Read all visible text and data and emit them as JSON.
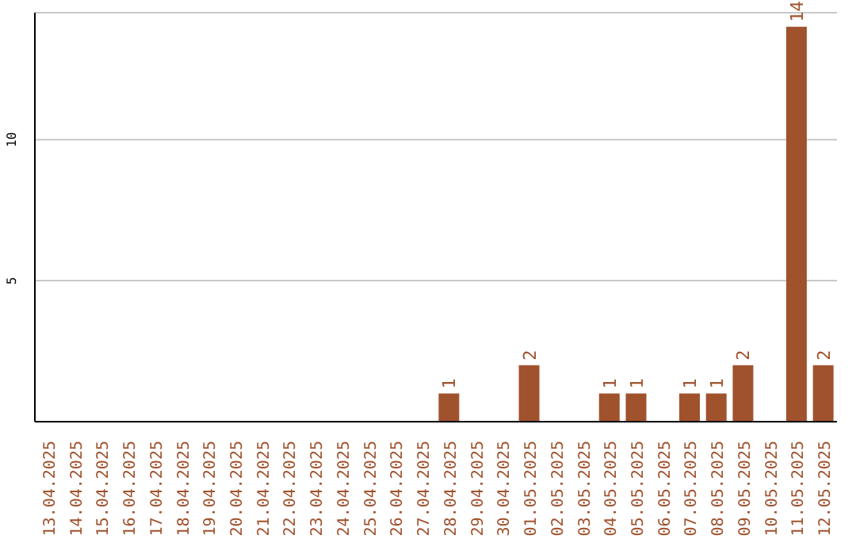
{
  "chart_data": {
    "type": "bar",
    "categories": [
      "13.04.2025",
      "14.04.2025",
      "15.04.2025",
      "16.04.2025",
      "17.04.2025",
      "18.04.2025",
      "19.04.2025",
      "20.04.2025",
      "21.04.2025",
      "22.04.2025",
      "23.04.2025",
      "24.04.2025",
      "25.04.2025",
      "26.04.2025",
      "27.04.2025",
      "28.04.2025",
      "29.04.2025",
      "30.04.2025",
      "01.05.2025",
      "02.05.2025",
      "03.05.2025",
      "04.05.2025",
      "05.05.2025",
      "06.05.2025",
      "07.05.2025",
      "08.05.2025",
      "09.05.2025",
      "10.05.2025",
      "11.05.2025",
      "12.05.2025"
    ],
    "values": [
      0,
      0,
      0,
      0,
      0,
      0,
      0,
      0,
      0,
      0,
      0,
      0,
      0,
      0,
      0,
      1,
      0,
      0,
      2,
      0,
      0,
      1,
      1,
      0,
      1,
      1,
      2,
      0,
      14,
      2
    ],
    "value_labels": [
      null,
      null,
      null,
      null,
      null,
      null,
      null,
      null,
      null,
      null,
      null,
      null,
      null,
      null,
      null,
      "1",
      null,
      null,
      "2",
      null,
      null,
      "1",
      "1",
      null,
      "1",
      "1",
      "2",
      null,
      "14",
      "2"
    ],
    "color": "#a0522d",
    "ylim": [
      0,
      14.5
    ],
    "yticks": [
      5,
      10
    ],
    "grid": "y"
  }
}
